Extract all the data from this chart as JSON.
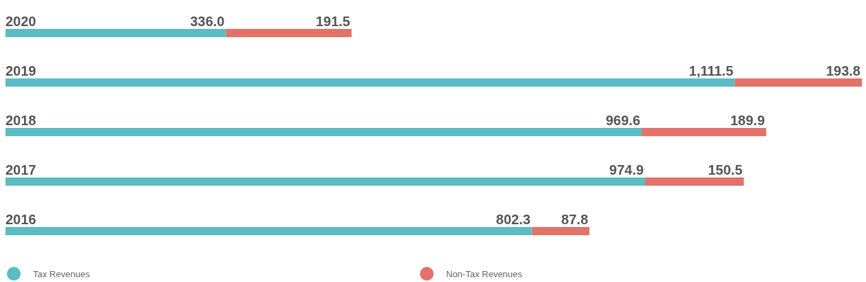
{
  "chart_data": {
    "type": "bar",
    "orientation": "horizontal",
    "stacked": true,
    "legend": "bottom",
    "categories": [
      "2020",
      "2019",
      "2018",
      "2017",
      "2016"
    ],
    "series": [
      {
        "name": "Tax Revenues",
        "color": "#5bbcc4",
        "values": [
          336.0,
          1111.5,
          969.6,
          974.9,
          802.3
        ],
        "value_labels": [
          "336.0",
          "1,111.5",
          "969.6",
          "974.9",
          "802.3"
        ]
      },
      {
        "name": "Non-Tax Revenues",
        "color": "#e2726a",
        "values": [
          191.5,
          193.8,
          189.9,
          150.5,
          87.8
        ],
        "value_labels": [
          "191.5",
          "193.8",
          "189.9",
          "150.5",
          "87.8"
        ]
      }
    ]
  }
}
